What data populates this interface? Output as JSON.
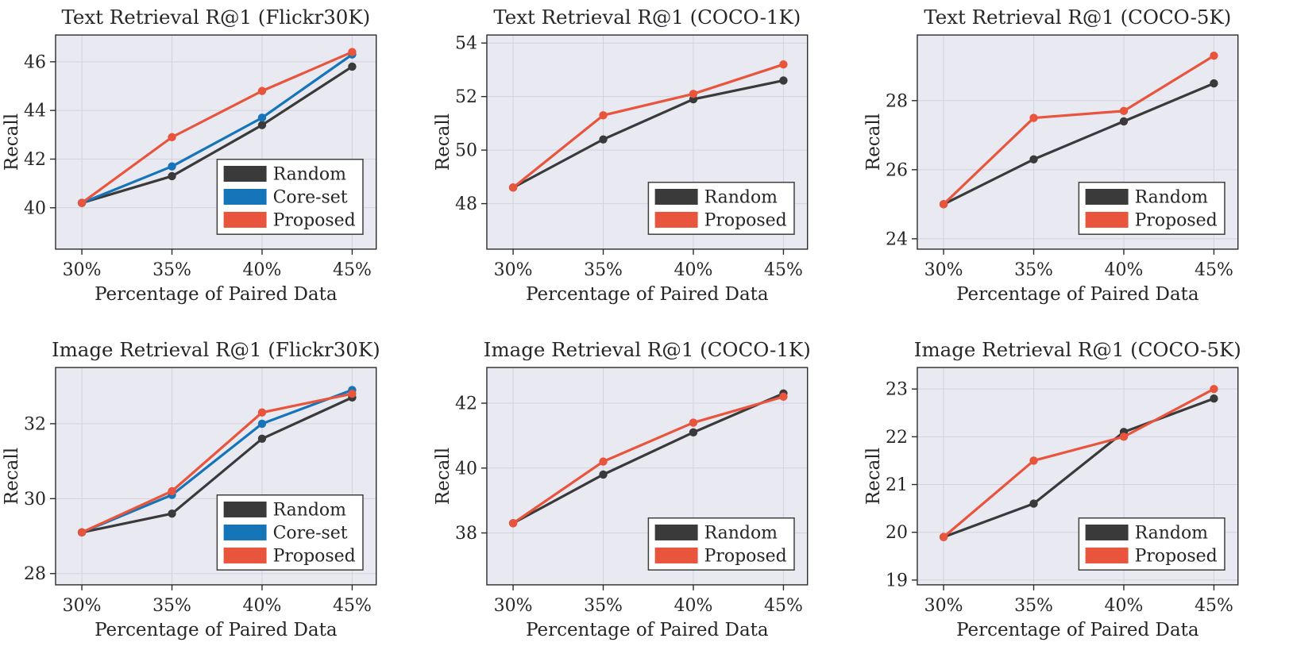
{
  "figure": {
    "description": "2x3 grid of line charts comparing data-selection strategies",
    "colors": {
      "random": "#3a3a3a",
      "coreset": "#1674b9",
      "proposed": "#e8543c",
      "plot_bg": "#e9e9f2",
      "grid": "#d2d2dd",
      "axis": "#2b2b2b",
      "text": "#262626",
      "legend_bg": "#ffffff",
      "legend_border": "#3f3f3f"
    }
  },
  "chart_data": [
    {
      "type": "line",
      "title": "Text Retrieval R@1 (Flickr30K)",
      "xlabel": "Percentage of Paired Data",
      "ylabel": "Recall",
      "categories": [
        "30%",
        "35%",
        "40%",
        "45%"
      ],
      "yticks": [
        40,
        42,
        44,
        46
      ],
      "ylim": [
        38.3,
        47.1
      ],
      "grid": true,
      "legend_position": "bottom-right",
      "series": [
        {
          "name": "Random",
          "color": "random",
          "values": [
            40.2,
            41.3,
            43.4,
            45.8
          ]
        },
        {
          "name": "Core-set",
          "color": "coreset",
          "values": [
            40.2,
            41.7,
            43.7,
            46.3
          ]
        },
        {
          "name": "Proposed",
          "color": "proposed",
          "values": [
            40.2,
            42.9,
            44.8,
            46.4
          ]
        }
      ]
    },
    {
      "type": "line",
      "title": "Text Retrieval R@1 (COCO-1K)",
      "xlabel": "Percentage of Paired Data",
      "ylabel": "Recall",
      "categories": [
        "30%",
        "35%",
        "40%",
        "45%"
      ],
      "yticks": [
        48,
        50,
        52,
        54
      ],
      "ylim": [
        46.3,
        54.3
      ],
      "grid": true,
      "legend_position": "bottom-right",
      "series": [
        {
          "name": "Random",
          "color": "random",
          "values": [
            48.6,
            50.4,
            51.9,
            52.6
          ]
        },
        {
          "name": "Proposed",
          "color": "proposed",
          "values": [
            48.6,
            51.3,
            52.1,
            53.2
          ]
        }
      ]
    },
    {
      "type": "line",
      "title": "Text Retrieval R@1 (COCO-5K)",
      "xlabel": "Percentage of Paired Data",
      "ylabel": "Recall",
      "categories": [
        "30%",
        "35%",
        "40%",
        "45%"
      ],
      "yticks": [
        24,
        26,
        28
      ],
      "ylim": [
        23.7,
        29.9
      ],
      "grid": true,
      "legend_position": "bottom-right",
      "series": [
        {
          "name": "Random",
          "color": "random",
          "values": [
            25.0,
            26.3,
            27.4,
            28.5
          ]
        },
        {
          "name": "Proposed",
          "color": "proposed",
          "values": [
            25.0,
            27.5,
            27.7,
            29.3
          ]
        }
      ]
    },
    {
      "type": "line",
      "title": "Image Retrieval R@1 (Flickr30K)",
      "xlabel": "Percentage of Paired Data",
      "ylabel": "Recall",
      "categories": [
        "30%",
        "35%",
        "40%",
        "45%"
      ],
      "yticks": [
        28,
        30,
        32
      ],
      "ylim": [
        27.7,
        33.5
      ],
      "grid": true,
      "legend_position": "bottom-right",
      "series": [
        {
          "name": "Random",
          "color": "random",
          "values": [
            29.1,
            29.6,
            31.6,
            32.7
          ]
        },
        {
          "name": "Core-set",
          "color": "coreset",
          "values": [
            29.1,
            30.1,
            32.0,
            32.9
          ]
        },
        {
          "name": "Proposed",
          "color": "proposed",
          "values": [
            29.1,
            30.2,
            32.3,
            32.8
          ]
        }
      ]
    },
    {
      "type": "line",
      "title": "Image Retrieval R@1 (COCO-1K)",
      "xlabel": "Percentage of Paired Data",
      "ylabel": "Recall",
      "categories": [
        "30%",
        "35%",
        "40%",
        "45%"
      ],
      "yticks": [
        38,
        40,
        42
      ],
      "ylim": [
        36.4,
        43.1
      ],
      "grid": true,
      "legend_position": "bottom-right",
      "series": [
        {
          "name": "Random",
          "color": "random",
          "values": [
            38.3,
            39.8,
            41.1,
            42.3
          ]
        },
        {
          "name": "Proposed",
          "color": "proposed",
          "values": [
            38.3,
            40.2,
            41.4,
            42.2
          ]
        }
      ]
    },
    {
      "type": "line",
      "title": "Image Retrieval R@1 (COCO-5K)",
      "xlabel": "Percentage of Paired Data",
      "ylabel": "Recall",
      "categories": [
        "30%",
        "35%",
        "40%",
        "45%"
      ],
      "yticks": [
        19,
        20,
        21,
        22,
        23
      ],
      "ylim": [
        18.9,
        23.45
      ],
      "grid": true,
      "legend_position": "bottom-right",
      "series": [
        {
          "name": "Random",
          "color": "random",
          "values": [
            19.9,
            20.6,
            22.1,
            22.8
          ]
        },
        {
          "name": "Proposed",
          "color": "proposed",
          "values": [
            19.9,
            21.5,
            22.0,
            23.0
          ]
        }
      ]
    }
  ]
}
